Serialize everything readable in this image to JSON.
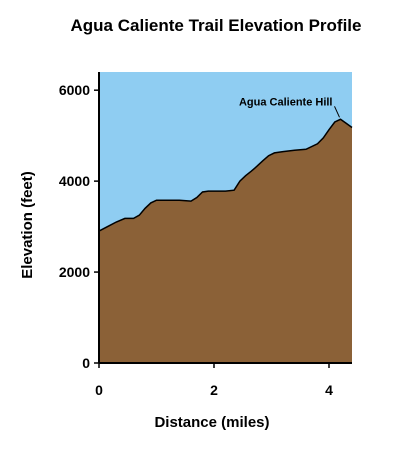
{
  "chart_data": {
    "type": "area",
    "title": "Agua Caliente Trail Elevation Profile",
    "xlabel": "Distance (miles)",
    "ylabel": "Elevation (feet)",
    "xlim": [
      0,
      4.4
    ],
    "ylim": [
      0,
      6400
    ],
    "x_ticks": [
      0,
      2,
      4
    ],
    "y_ticks": [
      0,
      2000,
      4000,
      6000
    ],
    "grid": false,
    "colors": {
      "sky": "#8fcdf2",
      "ground": "#8b6137",
      "line": "#000000"
    },
    "x": [
      0,
      0.15,
      0.3,
      0.45,
      0.6,
      0.7,
      0.8,
      0.9,
      1.0,
      1.2,
      1.4,
      1.6,
      1.7,
      1.8,
      1.9,
      2.0,
      2.2,
      2.35,
      2.45,
      2.55,
      2.65,
      2.75,
      2.85,
      2.95,
      3.05,
      3.2,
      3.4,
      3.6,
      3.8,
      3.9,
      4.0,
      4.1,
      4.2,
      4.3,
      4.4
    ],
    "y": [
      2900,
      3000,
      3100,
      3180,
      3180,
      3250,
      3400,
      3520,
      3580,
      3580,
      3580,
      3560,
      3640,
      3760,
      3780,
      3780,
      3780,
      3800,
      4000,
      4120,
      4220,
      4330,
      4450,
      4560,
      4620,
      4650,
      4680,
      4700,
      4820,
      4950,
      5130,
      5300,
      5360,
      5270,
      5180
    ],
    "annotations": [
      {
        "text": "Agua Caliente Hill",
        "x": 4.2,
        "y": 5360
      }
    ]
  }
}
